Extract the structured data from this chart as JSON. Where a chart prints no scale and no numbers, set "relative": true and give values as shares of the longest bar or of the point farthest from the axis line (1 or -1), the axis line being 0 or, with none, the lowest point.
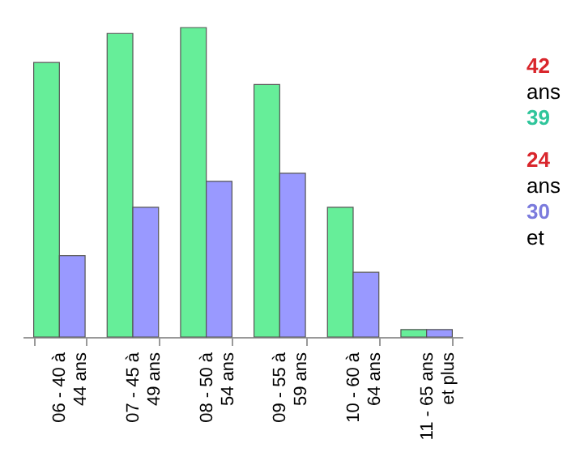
{
  "chart_data": {
    "type": "bar",
    "relative": true,
    "categories": [
      "06 - 40 à 44 ans",
      "07 - 45 à 49 ans",
      "08 - 50 à 54 ans",
      "09 - 55 à 59 ans",
      "10 - 60 à 64 ans",
      "11 - 65 ans et plus"
    ],
    "series": [
      {
        "color": "#66ee99",
        "values": [
          0.887,
          0.981,
          1,
          0.816,
          0.419,
          0.024
        ]
      },
      {
        "color": "#9999ff",
        "values": [
          0.263,
          0.419,
          0.503,
          0.529,
          0.209,
          0.024
        ]
      }
    ],
    "annotations": [
      "42",
      "ans",
      "39",
      "24",
      "ans",
      "30",
      "et"
    ],
    "legend": false,
    "grid": false
  }
}
